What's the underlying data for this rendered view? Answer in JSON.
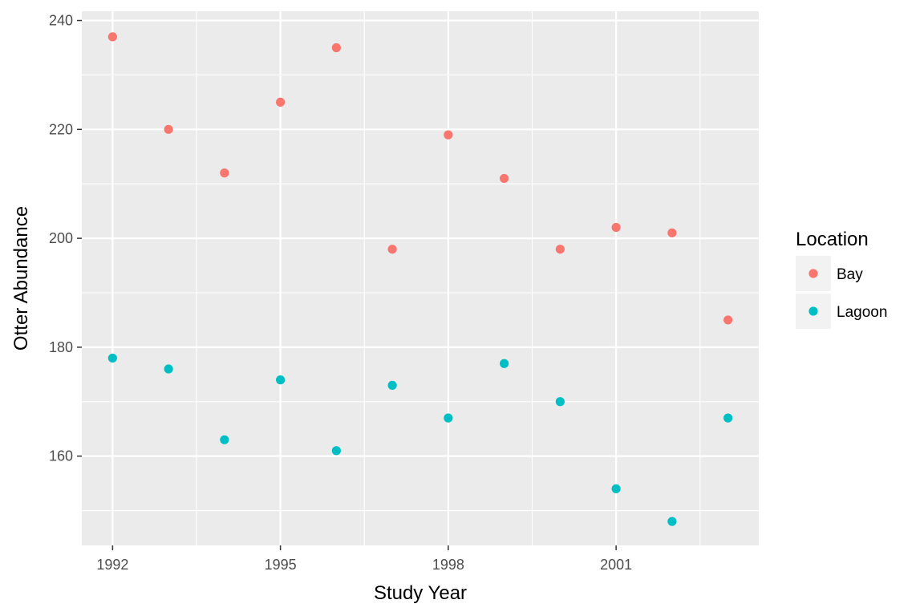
{
  "chart_data": {
    "type": "scatter",
    "title": "",
    "xlabel": "Study Year",
    "ylabel": "Otter Abundance",
    "xlim": [
      1991.45,
      2003.55
    ],
    "ylim": [
      143.6,
      241.7
    ],
    "x_ticks": [
      1992,
      1995,
      1998,
      2001
    ],
    "y_ticks": [
      160,
      180,
      200,
      220,
      240
    ],
    "grid": true,
    "legend": {
      "title": "Location",
      "placement": "right"
    },
    "series": [
      {
        "name": "Bay",
        "color": "#F8766D",
        "x": [
          1992,
          1993,
          1994,
          1995,
          1996,
          1997,
          1998,
          1999,
          2000,
          2001,
          2002,
          2003
        ],
        "y": [
          237,
          220,
          212,
          225,
          235,
          198,
          219,
          211,
          198,
          202,
          201,
          185
        ]
      },
      {
        "name": "Lagoon",
        "color": "#00BFC4",
        "x": [
          1992,
          1993,
          1994,
          1995,
          1996,
          1997,
          1998,
          1999,
          2000,
          2001,
          2002,
          2003
        ],
        "y": [
          178,
          176,
          163,
          174,
          161,
          173,
          167,
          177,
          170,
          154,
          148,
          167
        ]
      }
    ]
  }
}
